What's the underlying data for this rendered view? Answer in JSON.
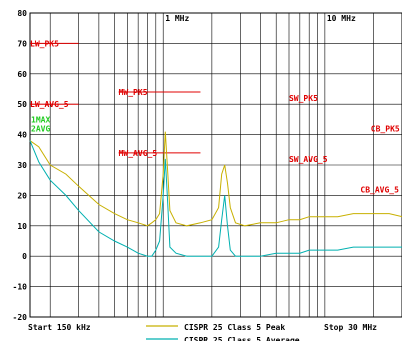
{
  "chart_data": {
    "type": "line",
    "x_scale": "log",
    "x_unit": "MHz",
    "xlim": [
      0.15,
      30
    ],
    "ylim": [
      -20,
      80
    ],
    "y_ticks": [
      80,
      70,
      60,
      50,
      40,
      30,
      20,
      10,
      0,
      -10,
      -20
    ],
    "y_tick_labels": [
      "80",
      "70",
      "60",
      "50",
      "40",
      "30",
      "20",
      "10",
      "0",
      "-10",
      "-20"
    ],
    "x_tick_labels": [
      {
        "x": 1,
        "text": "1 MHz"
      },
      {
        "x": 10,
        "text": "10 MHz"
      }
    ],
    "grid": true,
    "footer": {
      "start": "Start 150 kHz",
      "stop": "Stop 30 MHz"
    },
    "series": [
      {
        "name": "CISPR 25 Class 5 Peak",
        "color": "#c8b000",
        "x": [
          0.15,
          0.17,
          0.2,
          0.25,
          0.3,
          0.4,
          0.5,
          0.6,
          0.7,
          0.8,
          0.85,
          0.9,
          0.95,
          1.0,
          1.03,
          1.06,
          1.1,
          1.2,
          1.4,
          1.7,
          2.0,
          2.2,
          2.3,
          2.4,
          2.5,
          2.6,
          2.8,
          3.2,
          4.0,
          5.0,
          6.0,
          7.0,
          8.0,
          10,
          12,
          15,
          20,
          25,
          30
        ],
        "y": [
          38,
          36,
          30,
          27,
          23,
          17,
          14,
          12,
          11,
          10,
          11,
          12,
          14,
          27,
          41,
          30,
          15,
          11,
          10,
          11,
          12,
          16,
          27,
          30,
          24,
          16,
          11,
          10,
          11,
          11,
          12,
          12,
          13,
          13,
          13,
          14,
          14,
          14,
          13
        ]
      },
      {
        "name": "CISPR 25 Class 5 Average",
        "color": "#00b0b0",
        "x": [
          0.15,
          0.17,
          0.2,
          0.25,
          0.3,
          0.4,
          0.5,
          0.6,
          0.7,
          0.8,
          0.85,
          0.9,
          0.95,
          1.0,
          1.03,
          1.06,
          1.1,
          1.2,
          1.4,
          1.7,
          2.0,
          2.2,
          2.3,
          2.4,
          2.5,
          2.6,
          2.8,
          3.2,
          4.0,
          5.0,
          6.0,
          7.0,
          8.0,
          10,
          12,
          15,
          20,
          25,
          30
        ],
        "y": [
          38,
          31,
          25,
          20,
          15,
          8,
          5,
          3,
          1,
          0,
          0,
          2,
          5,
          20,
          32,
          20,
          3,
          1,
          0,
          0,
          0,
          3,
          12,
          20,
          10,
          2,
          0,
          0,
          0,
          1,
          1,
          1,
          2,
          2,
          2,
          3,
          3,
          3,
          3
        ]
      }
    ],
    "limit_lines": [
      {
        "label": "LW_PK5",
        "x_start": 0.15,
        "x_end": 0.3,
        "y": 70
      },
      {
        "label": "LW_AVG_5",
        "x_start": 0.15,
        "x_end": 0.3,
        "y": 50
      },
      {
        "label": "MW_PK5",
        "x_start": 0.53,
        "x_end": 1.7,
        "y": 54
      },
      {
        "label": "MW_AVG_5",
        "x_start": 0.53,
        "x_end": 1.7,
        "y": 34
      },
      {
        "label": "SW_PK5",
        "x_start": 6.0,
        "x_end": 6.0,
        "y": 52
      },
      {
        "label": "SW_AVG_5",
        "x_start": 6.0,
        "x_end": 6.0,
        "y": 32
      },
      {
        "label": "CB_PK5",
        "x_start": 26,
        "x_end": 26,
        "y": 42
      },
      {
        "label": "CB_AVG_5",
        "x_start": 26,
        "x_end": 26,
        "y": 22
      }
    ],
    "annotations": [
      {
        "text": "1MAX",
        "color": "#22cc22",
        "x": 0.15,
        "y": 45
      },
      {
        "text": "2AVG",
        "color": "#22cc22",
        "x": 0.15,
        "y": 42
      }
    ]
  }
}
